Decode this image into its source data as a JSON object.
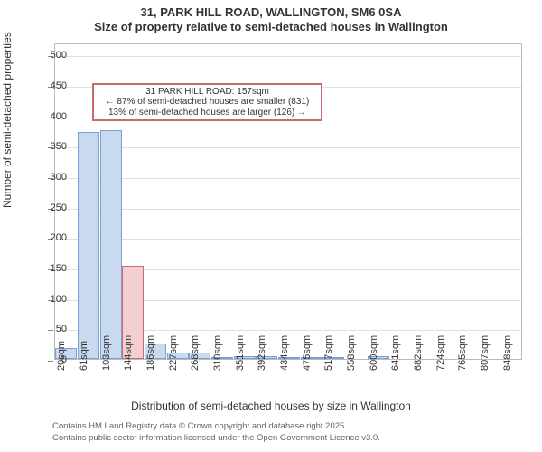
{
  "title": {
    "line1": "31, PARK HILL ROAD, WALLINGTON, SM6 0SA",
    "line2": "Size of property relative to semi-detached houses in Wallington"
  },
  "chart": {
    "type": "bar",
    "y_axis": {
      "title": "Number of semi-detached properties",
      "min": 0,
      "max": 520,
      "ticks": [
        0,
        50,
        100,
        150,
        200,
        250,
        300,
        350,
        400,
        450,
        500
      ]
    },
    "x_axis": {
      "title": "Distribution of semi-detached houses by size in Wallington",
      "tick_labels": [
        "20sqm",
        "61sqm",
        "103sqm",
        "144sqm",
        "186sqm",
        "227sqm",
        "268sqm",
        "310sqm",
        "351sqm",
        "392sqm",
        "434sqm",
        "475sqm",
        "517sqm",
        "558sqm",
        "600sqm",
        "641sqm",
        "682sqm",
        "724sqm",
        "765sqm",
        "807sqm",
        "848sqm"
      ]
    },
    "bars": {
      "count": 21,
      "values": [
        18,
        373,
        376,
        153,
        25,
        10,
        10,
        3,
        4,
        5,
        2,
        3,
        2,
        0,
        4,
        0,
        0,
        0,
        0,
        0,
        0
      ],
      "fill_color": "#c9d9f0",
      "border_color": "#7ba1d4",
      "highlight_index": 3,
      "highlight_fill_color": "#f4cfd1",
      "highlight_border_color": "#c96a70",
      "bar_width_frac": 0.98
    },
    "grid_color": "#e0e0e0",
    "plot_border_color": "#bbbbbb"
  },
  "annotation": {
    "line1": "31 PARK HILL ROAD: 157sqm",
    "line2": "← 87% of semi-detached houses are smaller (831)",
    "line3": "13% of semi-detached houses are larger (126) →",
    "border_color": "#c96a70"
  },
  "footer": {
    "line1": "Contains HM Land Registry data © Crown copyright and database right 2025.",
    "line2": "Contains public sector information licensed under the Open Government Licence v3.0."
  }
}
